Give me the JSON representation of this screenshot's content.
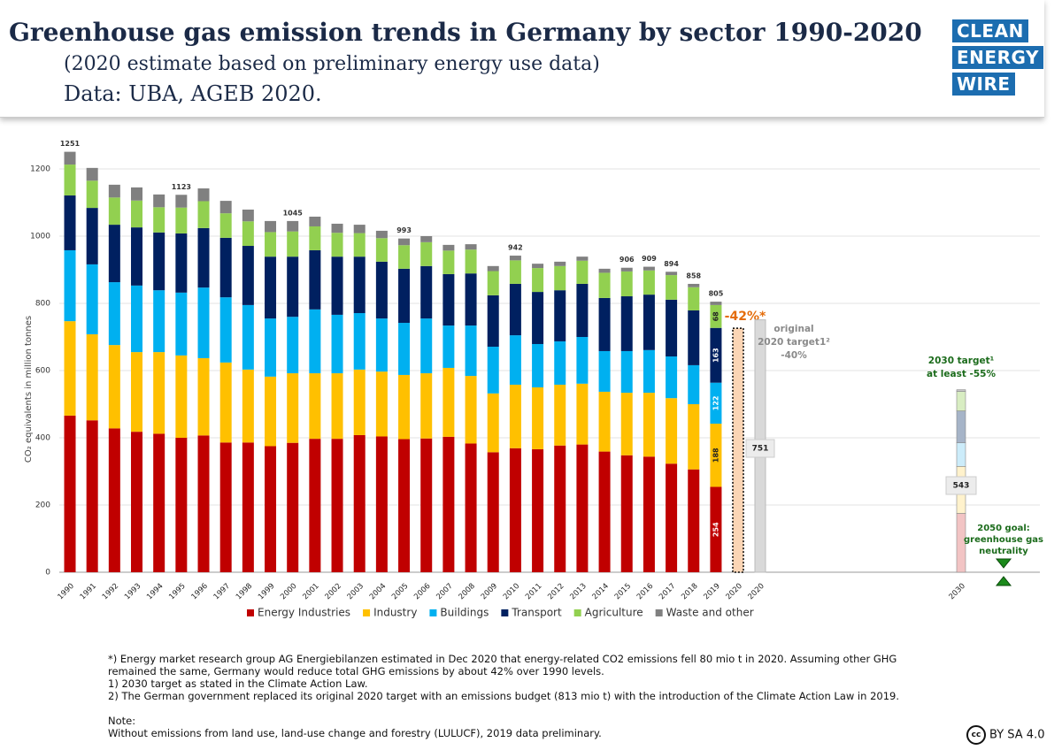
{
  "header": {
    "title": "Greenhouse gas emission trends in Germany by sector 1990-2020",
    "subtitle": "(2020 estimate based on preliminary energy use data)",
    "source": "Data: UBA, AGEB 2020.",
    "logo": [
      "CLEAN",
      "ENERGY",
      "WIRE"
    ]
  },
  "chart_data": {
    "type": "stacked-bar",
    "y_label": "CO₂ equivalents in million tonnes",
    "categories": [
      "1990",
      "1991",
      "1992",
      "1993",
      "1994",
      "1995",
      "1996",
      "1997",
      "1998",
      "1999",
      "2000",
      "2001",
      "2002",
      "2003",
      "2004",
      "2005",
      "2006",
      "2007",
      "2008",
      "2009",
      "2010",
      "2011",
      "2012",
      "2013",
      "2014",
      "2015",
      "2016",
      "2017",
      "2018",
      "2019"
    ],
    "series": [
      {
        "name": "Energy Industries",
        "color": "#c00000",
        "values": [
          466,
          452,
          428,
          418,
          412,
          400,
          407,
          386,
          386,
          375,
          385,
          397,
          397,
          408,
          404,
          396,
          398,
          403,
          383,
          357,
          369,
          366,
          377,
          380,
          359,
          348,
          344,
          323,
          306,
          254
        ]
      },
      {
        "name": "Industry",
        "color": "#ffc000",
        "values": [
          281,
          256,
          248,
          237,
          243,
          245,
          230,
          238,
          217,
          207,
          207,
          195,
          195,
          195,
          193,
          191,
          194,
          205,
          201,
          175,
          189,
          184,
          181,
          181,
          178,
          186,
          190,
          195,
          194,
          188
        ]
      },
      {
        "name": "Buildings",
        "color": "#00b0f0",
        "values": [
          211,
          208,
          187,
          198,
          184,
          187,
          210,
          194,
          192,
          173,
          168,
          190,
          174,
          168,
          158,
          155,
          163,
          126,
          150,
          139,
          147,
          129,
          129,
          139,
          121,
          124,
          127,
          124,
          116,
          122
        ]
      },
      {
        "name": "Transport",
        "color": "#002060",
        "values": [
          163,
          168,
          171,
          173,
          172,
          176,
          177,
          177,
          176,
          184,
          179,
          176,
          173,
          168,
          169,
          161,
          156,
          153,
          155,
          153,
          153,
          155,
          152,
          158,
          158,
          163,
          165,
          169,
          163,
          163
        ]
      },
      {
        "name": "Agriculture",
        "color": "#92d050",
        "values": [
          92,
          81,
          81,
          80,
          75,
          77,
          80,
          73,
          73,
          73,
          75,
          71,
          71,
          70,
          70,
          70,
          71,
          70,
          71,
          72,
          70,
          71,
          72,
          69,
          75,
          74,
          72,
          73,
          69,
          68
        ]
      },
      {
        "name": "Waste and other",
        "color": "#808080",
        "values": [
          38,
          38,
          38,
          39,
          38,
          38,
          38,
          37,
          35,
          33,
          31,
          29,
          27,
          25,
          22,
          20,
          18,
          17,
          16,
          15,
          14,
          13,
          13,
          12,
          12,
          11,
          11,
          10,
          10,
          10
        ]
      }
    ],
    "total_labels": [
      {
        "category": "1990",
        "value": 1251
      },
      {
        "category": "1995",
        "value": 1123
      },
      {
        "category": "2000",
        "value": 1045
      },
      {
        "category": "2005",
        "value": 993
      },
      {
        "category": "2010",
        "value": 942
      },
      {
        "category": "2015",
        "value": 906
      },
      {
        "category": "2016",
        "value": 909
      },
      {
        "category": "2017",
        "value": 894
      },
      {
        "category": "2018",
        "value": 858
      },
      {
        "category": "2019",
        "value": 805
      }
    ],
    "estimate_2020": {
      "category": "2020",
      "value": 726,
      "label": "-42%*",
      "color": "#fbd5b5"
    },
    "target_2020": {
      "category": "2020",
      "value": 751,
      "color": "#d9d9d9",
      "label_lines": [
        "original",
        "2020 target1²",
        "-40%"
      ]
    },
    "target_2030": {
      "category": "2030",
      "values": [
        175,
        140,
        70,
        95,
        58,
        5
      ],
      "colors": [
        "#f2c4c4",
        "#fff2cc",
        "#ccecfa",
        "#a6b4c8",
        "#d8edc2",
        "#c8c8c8"
      ],
      "total": 543,
      "label_lines": [
        "2030 target¹",
        "at least -55%"
      ]
    },
    "goal_2050": {
      "label_lines": [
        "2050 goal:",
        "greenhouse gas",
        "neutrality"
      ],
      "color": "#1b8a1b"
    },
    "ylim": [
      0,
      1300
    ],
    "yticks": [
      0,
      200,
      400,
      600,
      800,
      1000,
      1200
    ],
    "grid": true
  },
  "footnotes": [
    "*) Energy market research group AG Energiebilanzen estimated in Dec 2020 that energy-related CO2 emissions fell 80 mio t in 2020. Assuming other GHG remained the same, Germany would reduce total GHG emissions by about 42% over 1990 levels.",
    "1) 2030 target as stated in the Climate Action Law.",
    "2) The German government replaced its original 2020 target with an emissions budget (813 mio t) with the introduction of the Climate Action Law in 2019.",
    "",
    "Note:",
    "Without emissions from land use, land-use change and forestry (LULUCF), 2019 data preliminary."
  ],
  "license": "BY SA 4.0"
}
